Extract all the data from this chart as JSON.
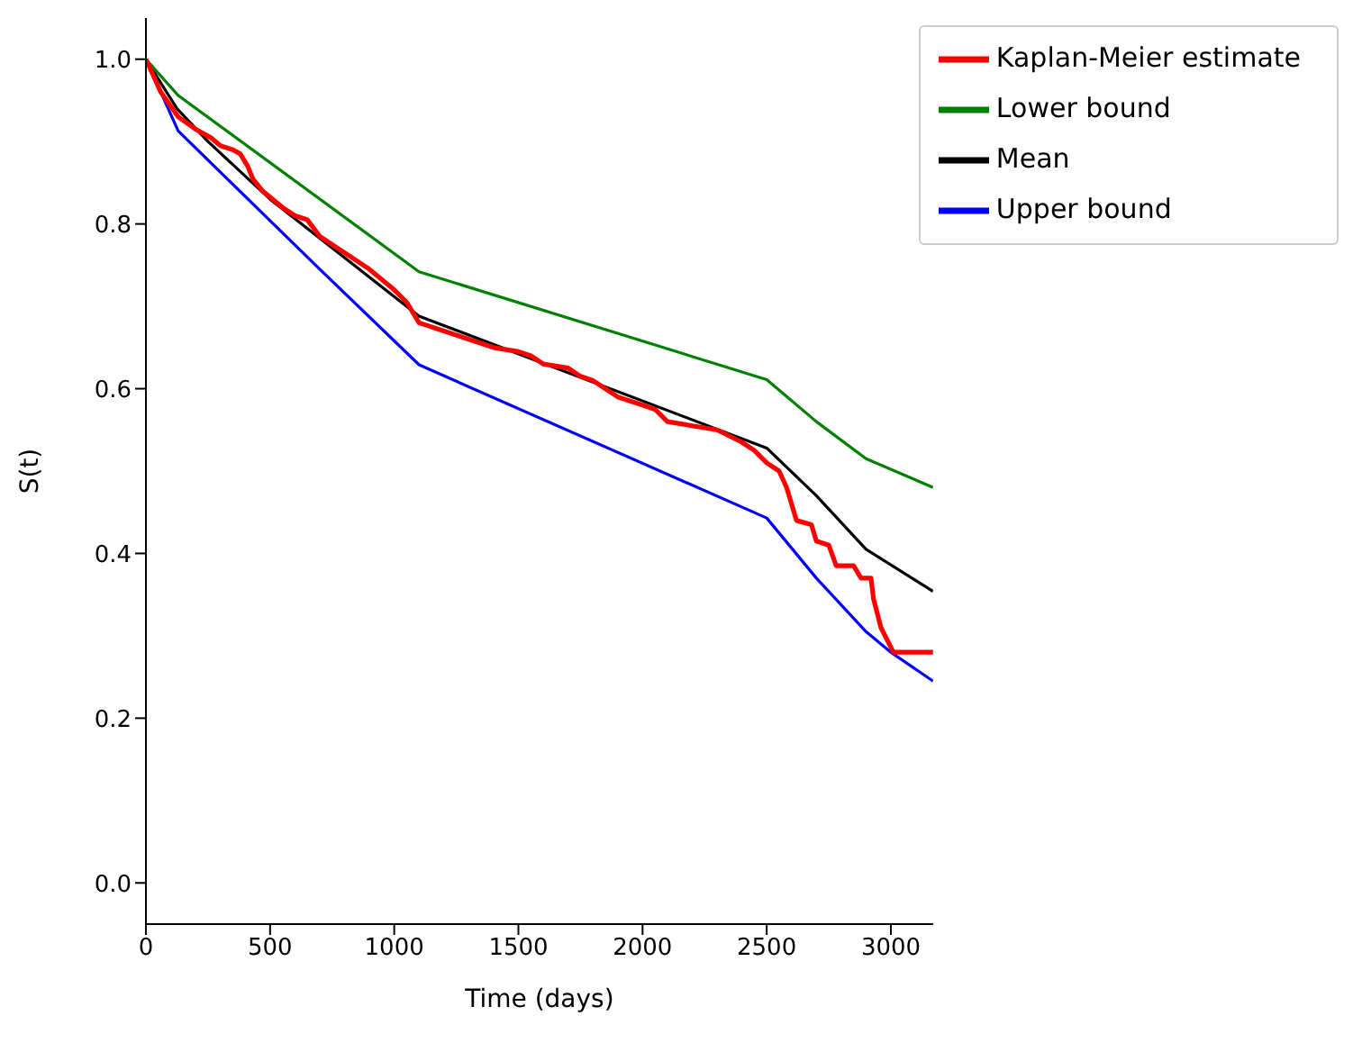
{
  "chart_data": {
    "type": "line",
    "xlabel": "Time (days)",
    "ylabel": "S(t)",
    "xlim": [
      0,
      3170
    ],
    "ylim": [
      -0.05,
      1.05
    ],
    "xticks": [
      0,
      500,
      1000,
      1500,
      2000,
      2500,
      3000
    ],
    "yticks": [
      {
        "value": 0,
        "label": "0.0"
      },
      {
        "value": 0.2,
        "label": "0.2"
      },
      {
        "value": 0.4,
        "label": "0.4"
      },
      {
        "value": 0.6,
        "label": "0.6"
      },
      {
        "value": 0.8,
        "label": "0.8"
      },
      {
        "value": 1,
        "label": "1.0"
      }
    ],
    "legend": "top right",
    "grid": false,
    "marker": "none",
    "line_style": "solid",
    "series": [
      {
        "name": "Mean",
        "color": "#000000",
        "x": [
          0,
          125,
          250,
          500,
          1100,
          2500,
          2700,
          2900,
          3170
        ],
        "values": [
          1.0,
          0.94,
          0.9,
          0.83,
          0.688,
          0.528,
          0.47,
          0.405,
          0.354
        ]
      },
      {
        "name": "Lower bound",
        "color": "#008000",
        "x": [
          0,
          130,
          1100,
          2500,
          2700,
          2900,
          3170
        ],
        "values": [
          1.0,
          0.956,
          0.742,
          0.611,
          0.56,
          0.515,
          0.48
        ]
      },
      {
        "name": "Upper bound",
        "color": "#0000ff",
        "x": [
          0,
          130,
          700,
          1100,
          2500,
          2700,
          2900,
          3000,
          3170
        ],
        "values": [
          1.0,
          0.913,
          0.745,
          0.629,
          0.443,
          0.37,
          0.305,
          0.28,
          0.245
        ]
      },
      {
        "name": "Kaplan-Meier estimate",
        "color": "#ff0000",
        "x": [
          0,
          60,
          130,
          200,
          260,
          300,
          350,
          380,
          410,
          430,
          470,
          550,
          600,
          650,
          700,
          800,
          900,
          1000,
          1050,
          1100,
          1200,
          1300,
          1400,
          1500,
          1550,
          1600,
          1700,
          1750,
          1800,
          1850,
          1900,
          2000,
          2050,
          2100,
          2200,
          2300,
          2400,
          2450,
          2500,
          2550,
          2580,
          2620,
          2680,
          2700,
          2750,
          2780,
          2850,
          2880,
          2920,
          2930,
          2960,
          3010,
          3170
        ],
        "values": [
          1.0,
          0.96,
          0.93,
          0.915,
          0.905,
          0.895,
          0.89,
          0.885,
          0.87,
          0.855,
          0.84,
          0.82,
          0.81,
          0.805,
          0.785,
          0.765,
          0.745,
          0.72,
          0.705,
          0.68,
          0.67,
          0.66,
          0.65,
          0.645,
          0.64,
          0.63,
          0.625,
          0.615,
          0.61,
          0.6,
          0.59,
          0.58,
          0.575,
          0.56,
          0.555,
          0.55,
          0.535,
          0.525,
          0.51,
          0.5,
          0.48,
          0.44,
          0.435,
          0.415,
          0.41,
          0.385,
          0.385,
          0.37,
          0.37,
          0.345,
          0.31,
          0.28,
          0.28
        ]
      }
    ]
  }
}
